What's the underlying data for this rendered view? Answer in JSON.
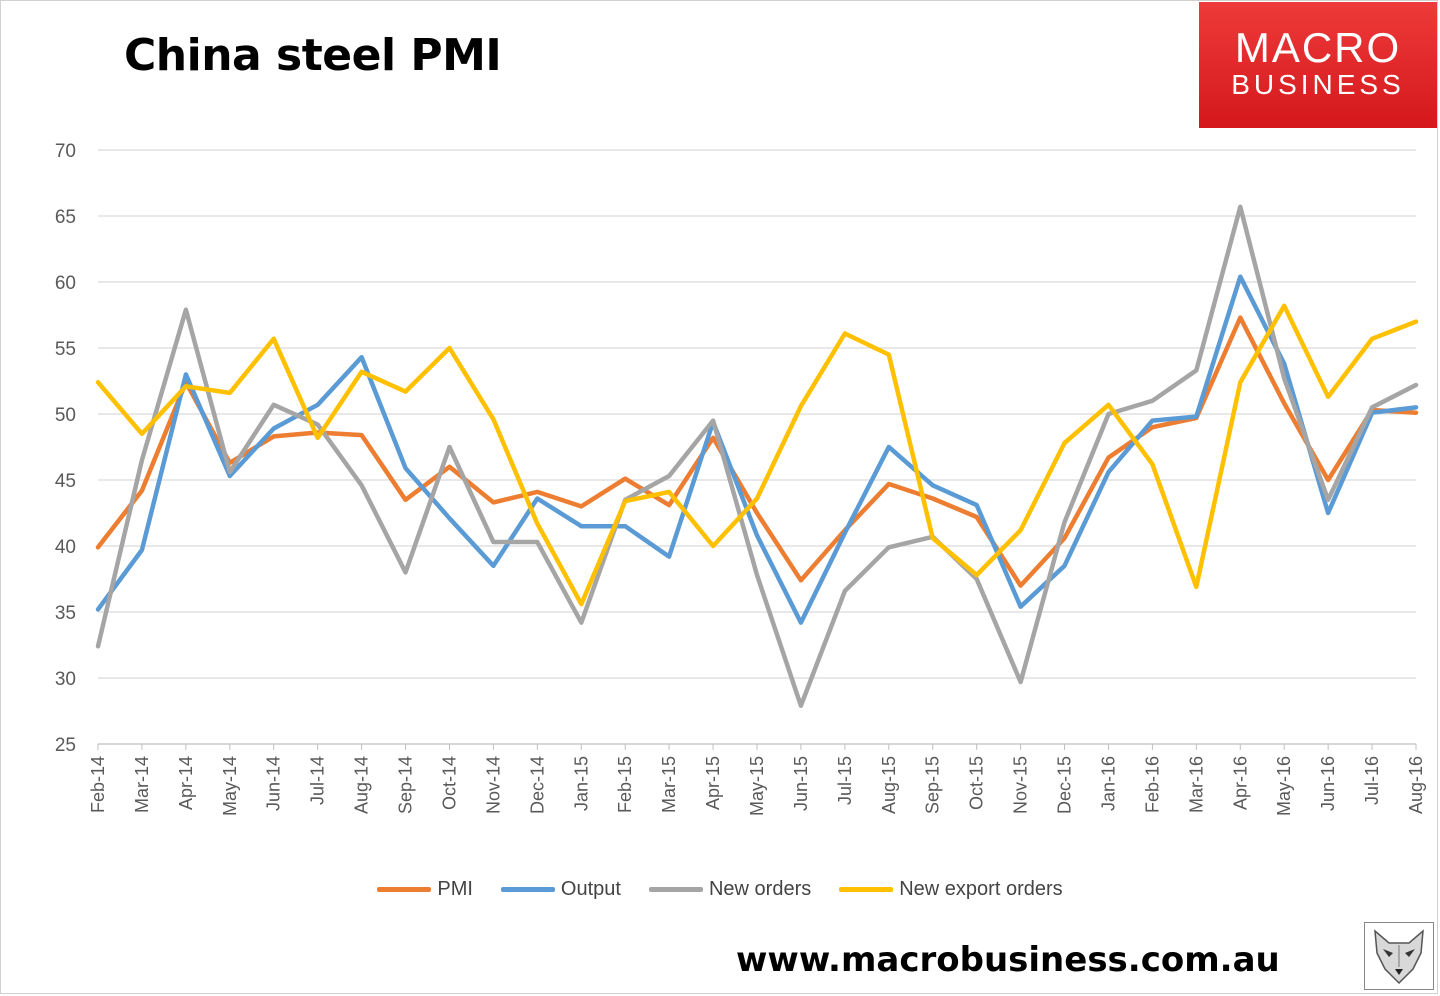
{
  "chart_data": {
    "type": "line",
    "title": "China steel PMI",
    "categories": [
      "Feb-14",
      "Mar-14",
      "Apr-14",
      "May-14",
      "Jun-14",
      "Jul-14",
      "Aug-14",
      "Sep-14",
      "Oct-14",
      "Nov-14",
      "Dec-14",
      "Jan-15",
      "Feb-15",
      "Mar-15",
      "Apr-15",
      "May-15",
      "Jun-15",
      "Jul-15",
      "Aug-15",
      "Sep-15",
      "Oct-15",
      "Nov-15",
      "Dec-15",
      "Jan-16",
      "Feb-16",
      "Mar-16",
      "Apr-16",
      "May-16",
      "Jun-16",
      "Jul-16",
      "Aug-16"
    ],
    "ylim": [
      25,
      70
    ],
    "yticks": [
      25,
      30,
      35,
      40,
      45,
      50,
      55,
      60,
      65,
      70
    ],
    "grid": true,
    "legend_position": "bottom",
    "series": [
      {
        "name": "PMI",
        "color": "#ed7d31",
        "values": [
          39.9,
          44.2,
          52.4,
          46.3,
          48.3,
          48.6,
          48.4,
          43.5,
          46.0,
          43.3,
          44.1,
          43.0,
          45.1,
          43.1,
          48.2,
          42.5,
          37.4,
          41.2,
          44.7,
          43.6,
          42.2,
          37.0,
          40.6,
          46.7,
          49.0,
          49.7,
          57.3,
          50.8,
          45.0,
          50.3,
          50.1
        ]
      },
      {
        "name": "Output",
        "color": "#5b9bd5",
        "values": [
          35.2,
          39.7,
          53.0,
          45.3,
          48.9,
          50.7,
          54.3,
          45.9,
          42.1,
          38.5,
          43.6,
          41.5,
          41.5,
          39.2,
          49.4,
          40.8,
          34.2,
          41.0,
          47.5,
          44.6,
          43.1,
          35.4,
          38.5,
          45.6,
          49.5,
          49.8,
          60.4,
          53.8,
          42.5,
          50.1,
          50.5
        ]
      },
      {
        "name": "New orders",
        "color": "#a5a5a5",
        "values": [
          32.4,
          46.5,
          57.9,
          45.6,
          50.7,
          49.2,
          44.6,
          38.0,
          47.5,
          40.3,
          40.3,
          34.2,
          43.5,
          45.3,
          49.5,
          37.8,
          27.9,
          36.6,
          39.9,
          40.7,
          37.5,
          29.7,
          41.8,
          50.0,
          51.0,
          53.3,
          65.7,
          52.7,
          43.5,
          50.5,
          52.2
        ]
      },
      {
        "name": "New export orders",
        "color": "#ffc000",
        "values": [
          52.4,
          48.5,
          52.1,
          51.6,
          55.7,
          48.2,
          53.2,
          51.7,
          55.0,
          49.6,
          41.7,
          35.6,
          43.4,
          44.1,
          40.0,
          43.6,
          50.6,
          56.1,
          54.5,
          40.6,
          37.8,
          41.2,
          47.8,
          50.7,
          46.2,
          36.9,
          52.4,
          58.2,
          51.3,
          55.7,
          57.0
        ]
      }
    ]
  },
  "logo": {
    "line1": "MACRO",
    "line2": "BUSINESS"
  },
  "website": "www.macrobusiness.com.au"
}
